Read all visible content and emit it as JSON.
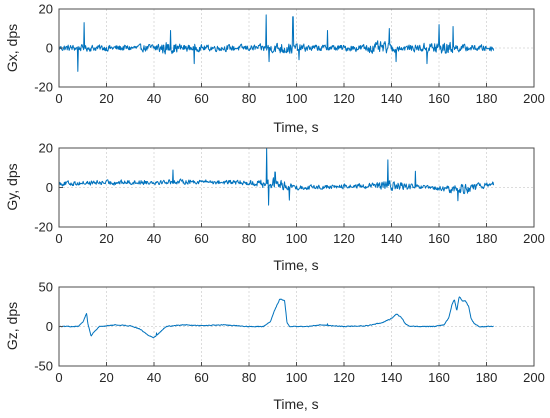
{
  "chart_data": [
    {
      "type": "line",
      "xlabel": "Time, s",
      "ylabel": "Gx, dps",
      "xlim": [
        0,
        200
      ],
      "ylim": [
        -20,
        20
      ],
      "xticks": [
        0,
        20,
        40,
        60,
        80,
        100,
        120,
        140,
        160,
        180,
        200
      ],
      "yticks": [
        -20,
        0,
        20
      ],
      "grid": true,
      "series_color": "#0072bd",
      "signal": {
        "t_start": 0,
        "t_end": 183,
        "noise_base": 2.2,
        "noise_bursts": [
          [
            45,
            2.0
          ],
          [
            95,
            2.2
          ],
          [
            135,
            2.0
          ],
          [
            160,
            3.0
          ]
        ],
        "baseline": [],
        "spikes": [
          [
            8,
            -12
          ],
          [
            10.5,
            13
          ],
          [
            47,
            9
          ],
          [
            57,
            -8
          ],
          [
            87.3,
            17
          ],
          [
            88.5,
            -7
          ],
          [
            98.5,
            16
          ],
          [
            101,
            -6
          ],
          [
            113,
            9
          ],
          [
            139,
            10
          ],
          [
            142,
            -7
          ],
          [
            155,
            -8
          ],
          [
            160,
            12
          ],
          [
            166,
            11
          ]
        ]
      }
    },
    {
      "type": "line",
      "xlabel": "Time, s",
      "ylabel": "Gy, dps",
      "xlim": [
        0,
        200
      ],
      "ylim": [
        -20,
        20
      ],
      "xticks": [
        0,
        20,
        40,
        60,
        80,
        100,
        120,
        140,
        160,
        180,
        200
      ],
      "yticks": [
        -20,
        0,
        20
      ],
      "grid": true,
      "series_color": "#0072bd",
      "signal": {
        "t_start": 0,
        "t_end": 183,
        "noise_base": 1.6,
        "noise_bursts": [
          [
            90,
            2.2
          ],
          [
            140,
            1.8
          ],
          [
            170,
            2.0
          ]
        ],
        "baseline": [
          [
            0,
            2
          ],
          [
            20,
            2.5
          ],
          [
            60,
            3
          ],
          [
            90,
            2
          ],
          [
            100,
            0
          ],
          [
            140,
            1
          ],
          [
            165,
            -1
          ],
          [
            175,
            0
          ],
          [
            183,
            2
          ]
        ],
        "spikes": [
          [
            48,
            6
          ],
          [
            87.5,
            18
          ],
          [
            88.3,
            -11
          ],
          [
            91,
            6
          ],
          [
            97,
            -7
          ],
          [
            138.5,
            13
          ],
          [
            150,
            8
          ],
          [
            168,
            -6
          ]
        ]
      }
    },
    {
      "type": "line",
      "xlabel": "Time, s",
      "ylabel": "Gz, dps",
      "xlim": [
        0,
        200
      ],
      "ylim": [
        -50,
        50
      ],
      "xticks": [
        0,
        20,
        40,
        60,
        80,
        100,
        120,
        140,
        160,
        180,
        200
      ],
      "yticks": [
        -50,
        0,
        50
      ],
      "grid": true,
      "series_color": "#0072bd",
      "signal": {
        "t_start": 0,
        "t_end": 183,
        "noise_base": 0.7,
        "noise_bursts": [],
        "baseline": [
          [
            0,
            0
          ],
          [
            8,
            0
          ],
          [
            10,
            5
          ],
          [
            11.5,
            16
          ],
          [
            12.3,
            2
          ],
          [
            13.5,
            -12
          ],
          [
            15,
            -6
          ],
          [
            17,
            0
          ],
          [
            24,
            2
          ],
          [
            30,
            1
          ],
          [
            34,
            -3
          ],
          [
            38,
            -12
          ],
          [
            40,
            -14
          ],
          [
            43,
            -6
          ],
          [
            45,
            0
          ],
          [
            52,
            2
          ],
          [
            60,
            1
          ],
          [
            70,
            2
          ],
          [
            80,
            0
          ],
          [
            86,
            0
          ],
          [
            89,
            6
          ],
          [
            91,
            22
          ],
          [
            93,
            35
          ],
          [
            95,
            33
          ],
          [
            96,
            5
          ],
          [
            97,
            0
          ],
          [
            105,
            0
          ],
          [
            110,
            2
          ],
          [
            120,
            0
          ],
          [
            130,
            1
          ],
          [
            136,
            5
          ],
          [
            140,
            10
          ],
          [
            142,
            16
          ],
          [
            144,
            12
          ],
          [
            146,
            3
          ],
          [
            148,
            0
          ],
          [
            158,
            0
          ],
          [
            162,
            2
          ],
          [
            164,
            10
          ],
          [
            165.5,
            28
          ],
          [
            166.5,
            34
          ],
          [
            167.5,
            20
          ],
          [
            168.5,
            38
          ],
          [
            170,
            32
          ],
          [
            171,
            33
          ],
          [
            172.5,
            25
          ],
          [
            173.5,
            10
          ],
          [
            175,
            3
          ],
          [
            177,
            0
          ],
          [
            183,
            0
          ]
        ],
        "spikes": [
          [
            11.7,
            2
          ],
          [
            41,
            3
          ],
          [
            113,
            2
          ]
        ]
      }
    }
  ]
}
